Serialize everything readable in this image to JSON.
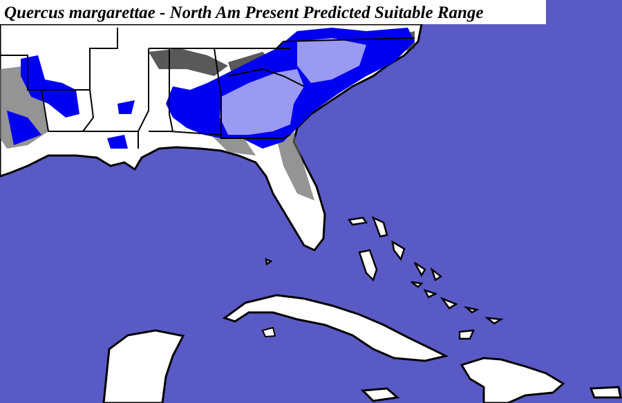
{
  "title": "Quercus margarettae - North Am Present Predicted Suitable Range"
}
